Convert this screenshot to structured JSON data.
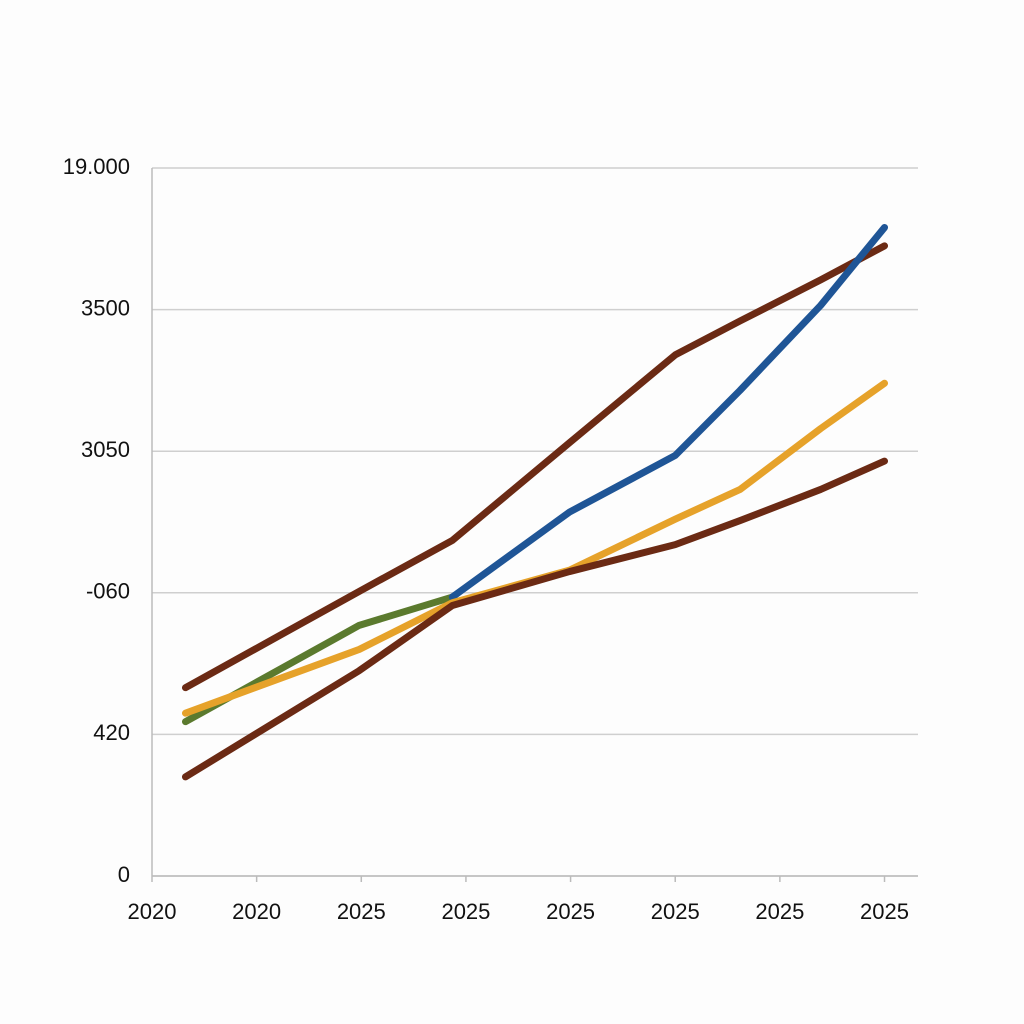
{
  "chart_data": {
    "type": "line",
    "x": [
      0.32,
      1.98,
      2.87,
      3.99,
      5.0,
      5.62,
      6.39,
      7.0
    ],
    "series": [
      {
        "color": "#6b2a14",
        "values": [
          1.33,
          2.01,
          2.37,
          3.06,
          3.68,
          3.92,
          4.21,
          4.45
        ]
      },
      {
        "color": "#5b7a2e",
        "values": [
          1.09,
          1.77,
          1.97,
          null,
          null,
          null,
          null,
          null
        ]
      },
      {
        "color": "#1f5596",
        "values": [
          null,
          null,
          1.97,
          2.57,
          2.97,
          3.43,
          4.03,
          4.58
        ]
      },
      {
        "color": "#e6a22a",
        "values": [
          1.15,
          1.6,
          1.93,
          2.16,
          2.52,
          2.73,
          3.16,
          3.48
        ]
      },
      {
        "color": "#6b2a14",
        "values": [
          0.7,
          1.45,
          1.91,
          2.15,
          2.34,
          2.51,
          2.73,
          2.93
        ]
      }
    ],
    "xlim": [
      0,
      7.32
    ],
    "xticks": [
      {
        "value": 0,
        "label": "2020"
      },
      {
        "value": 1,
        "label": "2020"
      },
      {
        "value": 2,
        "label": "2025"
      },
      {
        "value": 3,
        "label": "2025"
      },
      {
        "value": 4,
        "label": "2025"
      },
      {
        "value": 5,
        "label": "2025"
      },
      {
        "value": 6,
        "label": "2025"
      },
      {
        "value": 7,
        "label": "2025"
      }
    ],
    "ylim": [
      0,
      5
    ],
    "yticks": [
      0,
      {
        "value": 1,
        "label": "420"
      },
      {
        "value": 2,
        "label": "-060"
      },
      {
        "value": 3,
        "label": "3050"
      },
      {
        "value": 4,
        "label": "3500"
      },
      {
        "value": 5,
        "label": "19.000"
      }
    ],
    "grid": true
  }
}
